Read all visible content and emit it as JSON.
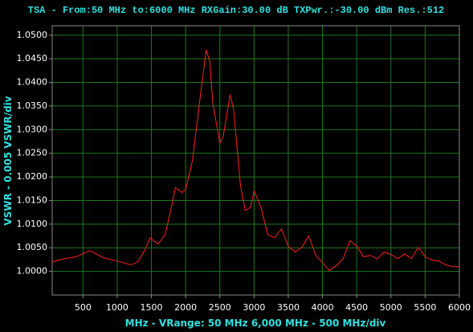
{
  "chart_data": {
    "type": "line",
    "title": "TSA - From:50 MHz to:6000 MHz RXGain:30.00 dB TXPwr.:-30.00 dBm Res.:512",
    "x_label": "MHz - VRange: 50 MHz 6,000 MHz - 500 MHz/div",
    "y_label": "VSWR - 0.005 VSWR/div",
    "x": [
      50,
      200,
      400,
      600,
      800,
      1000,
      1200,
      1300,
      1400,
      1480,
      1600,
      1700,
      1800,
      1850,
      1950,
      2000,
      2100,
      2200,
      2300,
      2350,
      2400,
      2500,
      2550,
      2650,
      2700,
      2800,
      2870,
      2950,
      3000,
      3100,
      3200,
      3300,
      3400,
      3500,
      3600,
      3700,
      3800,
      3900,
      4000,
      4100,
      4200,
      4300,
      4400,
      4500,
      4600,
      4700,
      4800,
      4900,
      5000,
      5100,
      5200,
      5300,
      5400,
      5500,
      5600,
      5700,
      5800,
      5900,
      6000
    ],
    "values": [
      1.002,
      1.0026,
      1.0031,
      1.0044,
      1.0029,
      1.0022,
      1.0014,
      1.002,
      1.0044,
      1.0071,
      1.0058,
      1.0078,
      1.0141,
      1.0177,
      1.0167,
      1.0173,
      1.0235,
      1.0354,
      1.0469,
      1.0447,
      1.0354,
      1.0272,
      1.0286,
      1.0374,
      1.0345,
      1.0184,
      1.0129,
      1.0136,
      1.017,
      1.0136,
      1.0078,
      1.0071,
      1.009,
      1.0053,
      1.0041,
      1.0051,
      1.0075,
      1.0034,
      1.0019,
      1.0002,
      1.0012,
      1.0026,
      1.0065,
      1.0054,
      1.0031,
      1.0034,
      1.0026,
      1.0041,
      1.0036,
      1.0027,
      1.0037,
      1.0027,
      1.0051,
      1.0031,
      1.0024,
      1.0022,
      1.0014,
      1.001,
      1.001
    ],
    "color": "#ff2020",
    "grid": true,
    "grid_color": "#1e7a1e",
    "xlim": [
      50,
      6000
    ],
    "xticks": [
      500,
      1000,
      1500,
      2000,
      2500,
      3000,
      3500,
      4000,
      4500,
      5000,
      5500,
      6000
    ],
    "ylim": [
      0.995,
      1.052
    ],
    "yticks": [
      {
        "value": 1.0,
        "label": "1.0000"
      },
      {
        "value": 1.005,
        "label": "1.0050"
      },
      {
        "value": 1.01,
        "label": "1.0100"
      },
      {
        "value": 1.015,
        "label": "1.0150"
      },
      {
        "value": 1.02,
        "label": "1.0200"
      },
      {
        "value": 1.025,
        "label": "1.0250"
      },
      {
        "value": 1.03,
        "label": "1.0300"
      },
      {
        "value": 1.035,
        "label": "1.0350"
      },
      {
        "value": 1.04,
        "label": "1.0400"
      },
      {
        "value": 1.045,
        "label": "1.0450"
      },
      {
        "value": 1.05,
        "label": "1.0500"
      }
    ]
  }
}
